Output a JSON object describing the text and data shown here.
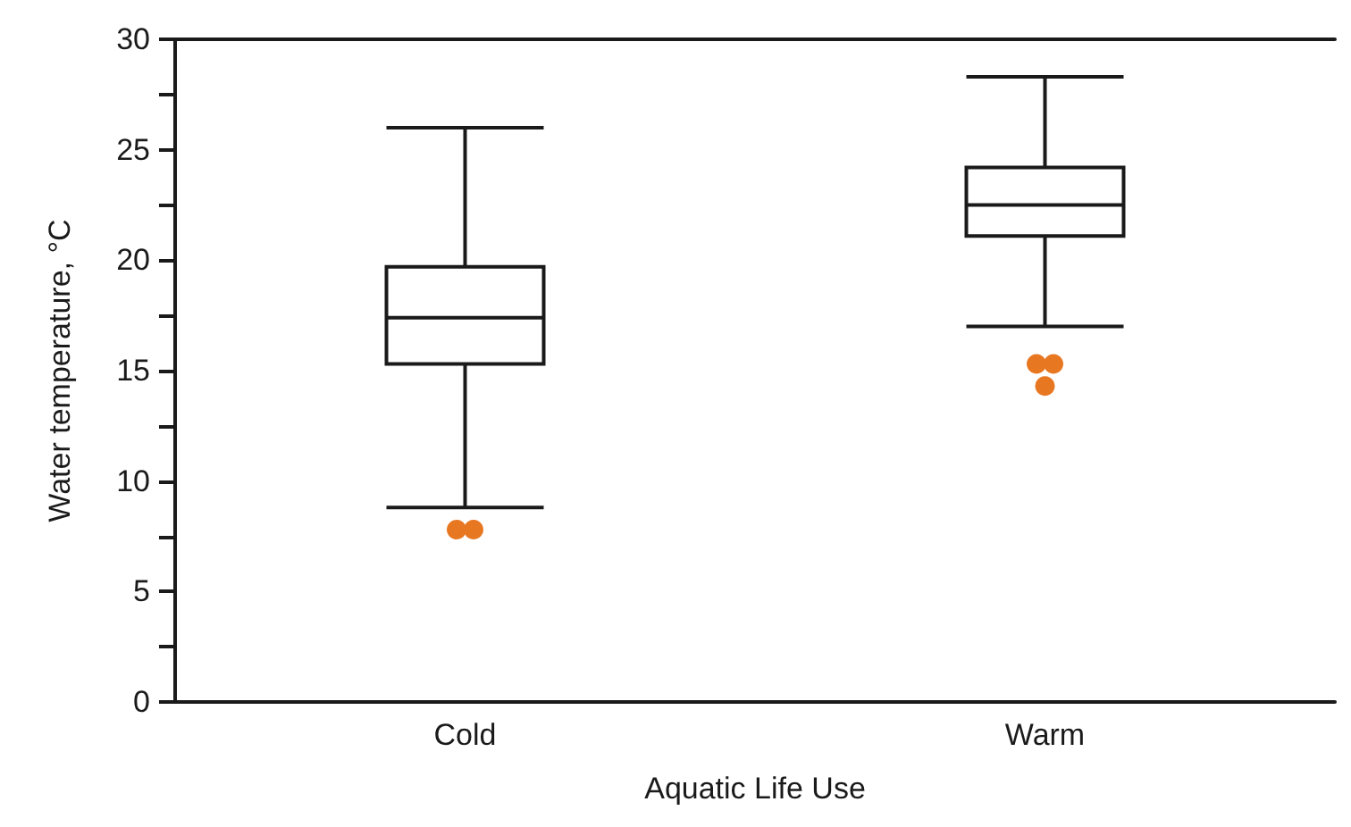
{
  "chart_data": {
    "type": "box",
    "xlabel": "Aquatic Life Use",
    "ylabel": "Water temperature, °C",
    "categories": [
      "Cold",
      "Warm"
    ],
    "ylim": [
      0,
      30
    ],
    "yticks": [
      0,
      {
        "value": 2.5,
        "label": null
      },
      5,
      {
        "value": 7.5,
        "label": null
      },
      10,
      {
        "value": 12.5,
        "label": null
      },
      15,
      {
        "value": 17.5,
        "label": null
      },
      20,
      {
        "value": 22.5,
        "label": null
      },
      25,
      {
        "value": 27.5,
        "label": null
      },
      30
    ],
    "grid": false,
    "series": [
      {
        "color": "#1a1a1a",
        "boxes": [
          {
            "low": 8.8,
            "q1": 15.3,
            "median": 17.4,
            "q3": 19.7,
            "high": 26.0
          },
          {
            "low": 17.0,
            "q1": 21.1,
            "median": 22.5,
            "q3": 24.2,
            "high": 28.3
          }
        ]
      },
      {
        "type": "scatter",
        "color": "#e87722",
        "x": [
          "Cold",
          "Cold",
          "Warm",
          "Warm",
          "Warm"
        ],
        "values": [
          7.8,
          7.8,
          15.3,
          15.3,
          14.3
        ]
      }
    ]
  }
}
